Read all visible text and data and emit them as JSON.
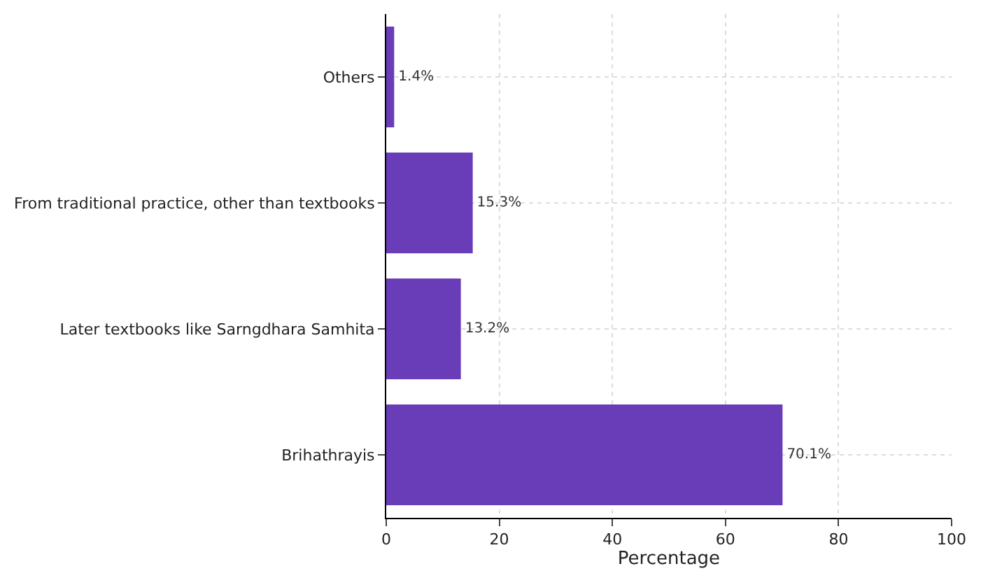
{
  "chart_data": {
    "type": "bar",
    "orientation": "horizontal",
    "categories": [
      "Others",
      "From traditional practice, other than textbooks",
      "Later textbooks like Sarngdhara Samhita",
      "Brihathrayis"
    ],
    "values": [
      1.4,
      15.3,
      13.2,
      70.1
    ],
    "color": "#6a3db8",
    "value_labels": [
      "1.4%",
      "15.3%",
      "13.2%",
      "70.1%"
    ],
    "xlabel": "Percentage",
    "xlim": [
      0,
      100
    ],
    "xticks": [
      0,
      20,
      40,
      60,
      80,
      100
    ],
    "grid": true
  }
}
